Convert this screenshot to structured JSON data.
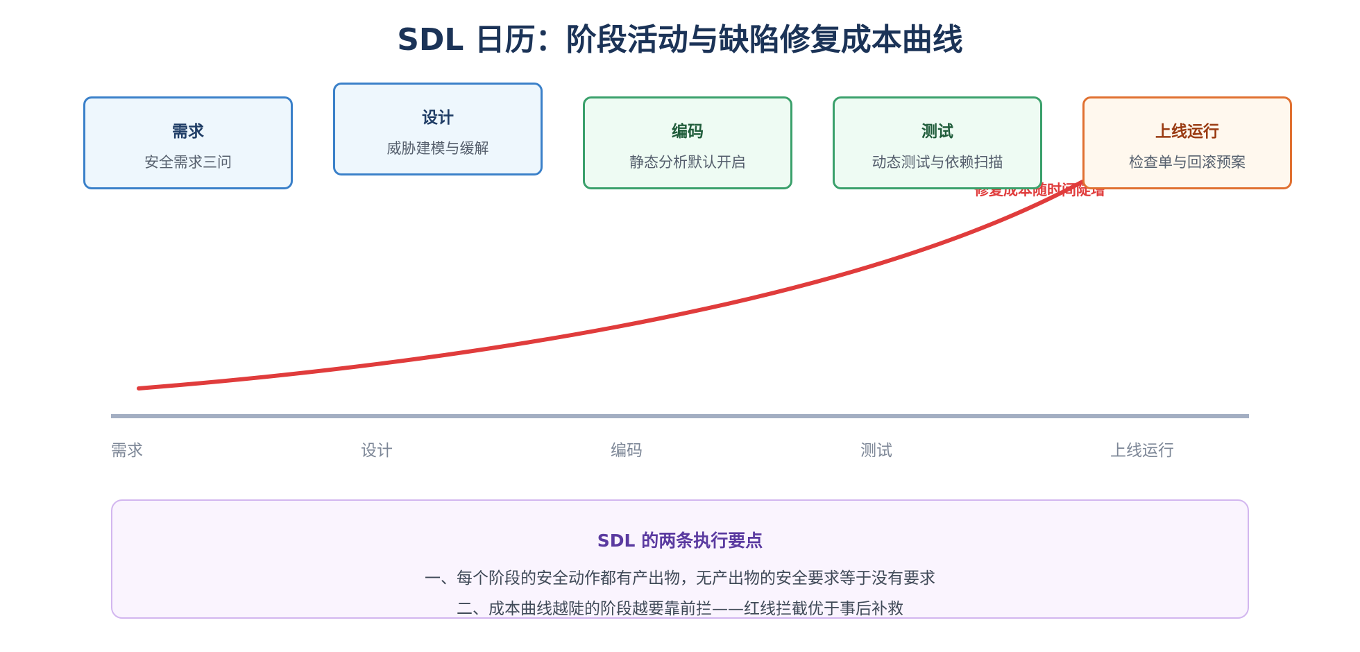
{
  "title": "SDL 日历：阶段活动与缺陷修复成本曲线",
  "stages": [
    {
      "name": "需求",
      "activity": "安全需求三问",
      "color": "blue"
    },
    {
      "name": "设计",
      "activity": "威胁建模与缓解",
      "color": "blue"
    },
    {
      "name": "编码",
      "activity": "静态分析默认开启",
      "color": "green"
    },
    {
      "name": "测试",
      "activity": "动态测试与依赖扫描",
      "color": "green"
    },
    {
      "name": "上线运行",
      "activity": "检查单与回滚预案",
      "color": "orange"
    }
  ],
  "curve": {
    "label": "修复成本随时间陡增",
    "color": "#e03c3c"
  },
  "axis": {
    "labels": [
      "需求",
      "设计",
      "编码",
      "测试",
      "上线运行"
    ],
    "color": "#a3aec2"
  },
  "notes": {
    "title": "SDL 的两条执行要点",
    "lines": [
      "一、每个阶段的安全动作都有产出物，无产出物的安全要求等于没有要求",
      "二、成本曲线越陡的阶段越要靠前拦——红线拦截优于事后补救"
    ]
  }
}
